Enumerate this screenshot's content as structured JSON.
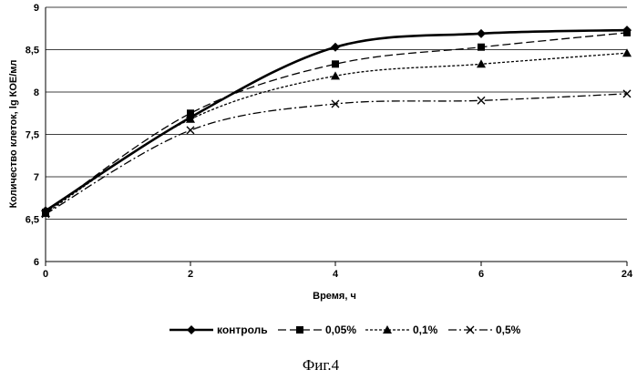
{
  "chart_data": {
    "type": "line",
    "xlabel": "Время, ч",
    "ylabel": "Количество клеток, lg КОЕ/мл",
    "categories": [
      "0",
      "2",
      "4",
      "6",
      "24"
    ],
    "ylim": [
      6,
      9
    ],
    "yticks": [
      "6",
      "6,5",
      "7",
      "7,5",
      "8",
      "8,5",
      "9"
    ],
    "grid": "horizontal",
    "legend_position": "bottom",
    "series": [
      {
        "name": "контроль",
        "values": [
          6.6,
          7.7,
          8.53,
          8.69,
          8.73
        ],
        "color": "#000000",
        "marker": "diamond",
        "dash": "solid",
        "width": 2.6
      },
      {
        "name": "0,05%",
        "values": [
          6.58,
          7.75,
          8.33,
          8.53,
          8.7
        ],
        "color": "#000000",
        "marker": "square",
        "dash": "9,4",
        "width": 1.3
      },
      {
        "name": "0,1%",
        "values": [
          6.57,
          7.68,
          8.19,
          8.33,
          8.46
        ],
        "color": "#000000",
        "marker": "triangle",
        "dash": "3,2",
        "width": 1.3
      },
      {
        "name": "0,5%",
        "values": [
          6.56,
          7.55,
          7.86,
          7.9,
          7.98
        ],
        "color": "#000000",
        "marker": "x",
        "dash": "9,3,2,3",
        "width": 1.3
      }
    ],
    "caption": "Фиг.4"
  }
}
